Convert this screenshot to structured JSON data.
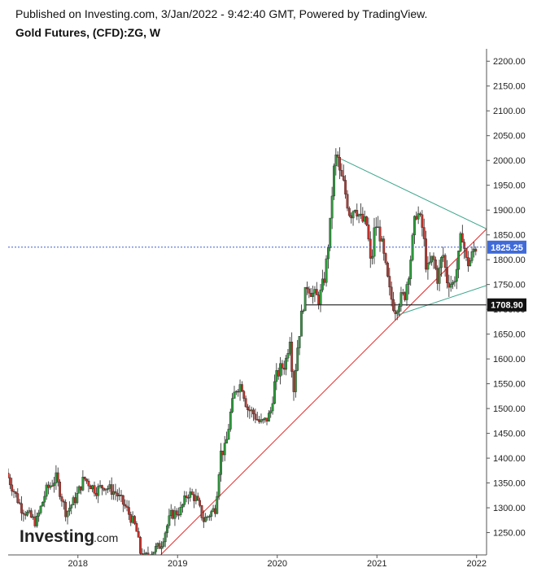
{
  "header": {
    "published": "Published on Investing.com, 3/Jan/2022 - 9:42:40 GMT, Powered by TradingView.",
    "title": "Gold Futures, (CFD):ZG, W"
  },
  "logo": {
    "text": "Investing",
    "suffix": ".com"
  },
  "colors": {
    "up": "#2e9b3c",
    "down": "#c7332b",
    "trend_support": "#e62c2c",
    "triangle": "#3aa58a",
    "price_line": "#3a5fd0",
    "price_badge": "#3f6ad8",
    "support_line": "#000000"
  },
  "chart_data": {
    "type": "candlestick",
    "title": "Gold Futures, (CFD):ZG, W",
    "xlabel": "",
    "ylabel": "",
    "ylim": [
      1205,
      2225
    ],
    "xlim": [
      2017.3,
      2022.1
    ],
    "y_ticks": [
      1250,
      1300,
      1350,
      1400,
      1450,
      1500,
      1550,
      1600,
      1650,
      1700,
      1750,
      1800,
      1850,
      1900,
      1950,
      2000,
      2050,
      2100,
      2150,
      2200
    ],
    "y_tick_labels": [
      "1250.00",
      "1300.00",
      "1350.00",
      "1400.00",
      "1450.00",
      "1500.00",
      "1550.00",
      "1600.00",
      "1650.00",
      "1700.00",
      "1750.00",
      "1800.00",
      "1850.00",
      "1900.00",
      "1950.00",
      "2000.00",
      "2050.00",
      "2100.00",
      "2150.00",
      "2200.00"
    ],
    "x_ticks": [
      {
        "label": "2018",
        "value": 2018
      },
      {
        "label": "2019",
        "value": 2019
      },
      {
        "label": "2020",
        "value": 2020
      },
      {
        "label": "2021",
        "value": 2021
      },
      {
        "label": "2022",
        "value": 2022
      }
    ],
    "current_price": 1825.25,
    "current_price_label": "1825.25",
    "support_level": 1708.9,
    "support_label": "1708.90",
    "trendlines": [
      {
        "name": "rising-support",
        "from": [
          2018.83,
          1205
        ],
        "to": [
          2022.1,
          1862
        ]
      },
      {
        "name": "triangle-upper",
        "from": [
          2020.62,
          2005
        ],
        "to": [
          2022.1,
          1862
        ]
      },
      {
        "name": "triangle-lower",
        "from": [
          2021.2,
          1688
        ],
        "to": [
          2022.1,
          1748
        ]
      },
      {
        "name": "support-horizontal",
        "from": [
          2020.27,
          1708.9
        ],
        "to": [
          2022.1,
          1708.9
        ]
      }
    ],
    "anchors": [
      [
        2017.3,
        1370
      ],
      [
        2017.45,
        1300
      ],
      [
        2017.6,
        1270
      ],
      [
        2017.7,
        1335
      ],
      [
        2017.8,
        1360
      ],
      [
        2017.9,
        1290
      ],
      [
        2018.0,
        1320
      ],
      [
        2018.08,
        1360
      ],
      [
        2018.2,
        1335
      ],
      [
        2018.28,
        1345
      ],
      [
        2018.4,
        1330
      ],
      [
        2018.5,
        1300
      ],
      [
        2018.6,
        1260
      ],
      [
        2018.66,
        1195
      ],
      [
        2018.75,
        1210
      ],
      [
        2018.85,
        1225
      ],
      [
        2018.95,
        1285
      ],
      [
        2019.05,
        1295
      ],
      [
        2019.12,
        1330
      ],
      [
        2019.2,
        1320
      ],
      [
        2019.28,
        1275
      ],
      [
        2019.33,
        1285
      ],
      [
        2019.4,
        1300
      ],
      [
        2019.45,
        1410
      ],
      [
        2019.5,
        1420
      ],
      [
        2019.55,
        1490
      ],
      [
        2019.6,
        1540
      ],
      [
        2019.66,
        1550
      ],
      [
        2019.72,
        1500
      ],
      [
        2019.78,
        1490
      ],
      [
        2019.85,
        1470
      ],
      [
        2019.9,
        1475
      ],
      [
        2019.95,
        1490
      ],
      [
        2020.0,
        1560
      ],
      [
        2020.05,
        1580
      ],
      [
        2020.1,
        1590
      ],
      [
        2020.15,
        1650
      ],
      [
        2020.18,
        1530
      ],
      [
        2020.22,
        1620
      ],
      [
        2020.27,
        1700
      ],
      [
        2020.32,
        1750
      ],
      [
        2020.38,
        1730
      ],
      [
        2020.44,
        1720
      ],
      [
        2020.5,
        1770
      ],
      [
        2020.55,
        1870
      ],
      [
        2020.58,
        1970
      ],
      [
        2020.62,
        2020
      ],
      [
        2020.64,
        1975
      ],
      [
        2020.68,
        1955
      ],
      [
        2020.75,
        1890
      ],
      [
        2020.8,
        1910
      ],
      [
        2020.86,
        1880
      ],
      [
        2020.92,
        1870
      ],
      [
        2020.96,
        1780
      ],
      [
        2021.0,
        1875
      ],
      [
        2021.05,
        1850
      ],
      [
        2021.1,
        1790
      ],
      [
        2021.15,
        1730
      ],
      [
        2021.2,
        1700
      ],
      [
        2021.25,
        1720
      ],
      [
        2021.3,
        1730
      ],
      [
        2021.35,
        1790
      ],
      [
        2021.4,
        1880
      ],
      [
        2021.42,
        1900
      ],
      [
        2021.48,
        1860
      ],
      [
        2021.52,
        1775
      ],
      [
        2021.58,
        1805
      ],
      [
        2021.63,
        1760
      ],
      [
        2021.68,
        1815
      ],
      [
        2021.72,
        1760
      ],
      [
        2021.78,
        1750
      ],
      [
        2021.83,
        1790
      ],
      [
        2021.87,
        1860
      ],
      [
        2021.92,
        1790
      ],
      [
        2021.96,
        1800
      ],
      [
        2022.0,
        1825
      ]
    ],
    "legend": "none",
    "grid": false
  }
}
